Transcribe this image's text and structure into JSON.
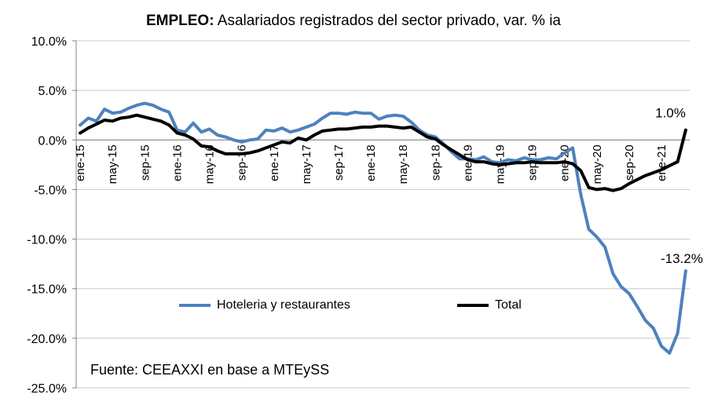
{
  "chart_data": {
    "type": "line",
    "title_bold": "EMPLEO:",
    "title_rest": " Asalariados registrados del sector privado, var. % ia",
    "source": "Fuente: CEEAXXI en base a MTEySS",
    "x_tick_labels": [
      "ene-15",
      "may-15",
      "sep-15",
      "ene-16",
      "may-16",
      "sep-16",
      "ene-17",
      "may-17",
      "sep-17",
      "ene-18",
      "may-18",
      "sep-18",
      "ene-19",
      "may-19",
      "sep-19",
      "ene-20",
      "may-20",
      "sep-20",
      "ene-21"
    ],
    "ylim": [
      -25,
      10
    ],
    "y_ticks": [
      10,
      5,
      0,
      -5,
      -10,
      -15,
      -20,
      -25
    ],
    "y_tick_labels": [
      "10.0%",
      "5.0%",
      "0.0%",
      "-5.0%",
      "-10.0%",
      "-15.0%",
      "-20.0%",
      "-25.0%"
    ],
    "grid": "horizontal",
    "legend_position": "bottom-center",
    "x_start": "2015-01",
    "series": [
      {
        "name": "Hoteleria y restaurantes",
        "color": "#4f81bd",
        "values": [
          1.5,
          2.2,
          1.9,
          3.1,
          2.7,
          2.8,
          3.2,
          3.5,
          3.7,
          3.5,
          3.1,
          2.8,
          1.0,
          0.8,
          1.7,
          0.8,
          1.1,
          0.5,
          0.3,
          0.0,
          -0.2,
          0.0,
          0.1,
          1.0,
          0.9,
          1.2,
          0.8,
          1.0,
          1.3,
          1.6,
          2.2,
          2.7,
          2.7,
          2.6,
          2.8,
          2.7,
          2.7,
          2.1,
          2.4,
          2.5,
          2.4,
          1.8,
          1.0,
          0.5,
          0.3,
          -0.4,
          -1.2,
          -1.9,
          -1.9,
          -2.0,
          -1.7,
          -2.2,
          -2.3,
          -2.0,
          -2.1,
          -1.8,
          -2.0,
          -2.0,
          -1.8,
          -1.9,
          -1.3,
          -0.8,
          -5.5,
          -9.0,
          -9.8,
          -10.8,
          -13.5,
          -14.8,
          -15.5,
          -16.8,
          -18.2,
          -19.0,
          -20.8,
          -21.5,
          -19.5,
          -13.2
        ]
      },
      {
        "name": "Total",
        "color": "#000000",
        "values": [
          0.7,
          1.2,
          1.6,
          2.0,
          1.9,
          2.2,
          2.3,
          2.5,
          2.3,
          2.1,
          1.9,
          1.5,
          0.7,
          0.5,
          0.1,
          -0.6,
          -0.7,
          -1.1,
          -1.4,
          -1.4,
          -1.4,
          -1.3,
          -1.1,
          -0.8,
          -0.5,
          -0.2,
          -0.3,
          0.2,
          0.0,
          0.5,
          0.9,
          1.0,
          1.1,
          1.1,
          1.2,
          1.3,
          1.3,
          1.4,
          1.4,
          1.3,
          1.2,
          1.3,
          0.8,
          0.3,
          0.1,
          -0.5,
          -1.0,
          -1.5,
          -2.0,
          -2.2,
          -2.2,
          -2.4,
          -2.5,
          -2.4,
          -2.3,
          -2.3,
          -2.2,
          -2.3,
          -2.3,
          -2.3,
          -2.2,
          -2.4,
          -3.1,
          -4.8,
          -5.0,
          -4.9,
          -5.1,
          -4.9,
          -4.4,
          -4.0,
          -3.6,
          -3.3,
          -3.0,
          -2.6,
          -2.2,
          1.0
        ]
      }
    ],
    "annotations": [
      {
        "text": "1.0%",
        "series": 1,
        "index": 75,
        "placement": "above"
      },
      {
        "text": "-13.2%",
        "series": 0,
        "index": 75,
        "placement": "above-left"
      }
    ]
  }
}
